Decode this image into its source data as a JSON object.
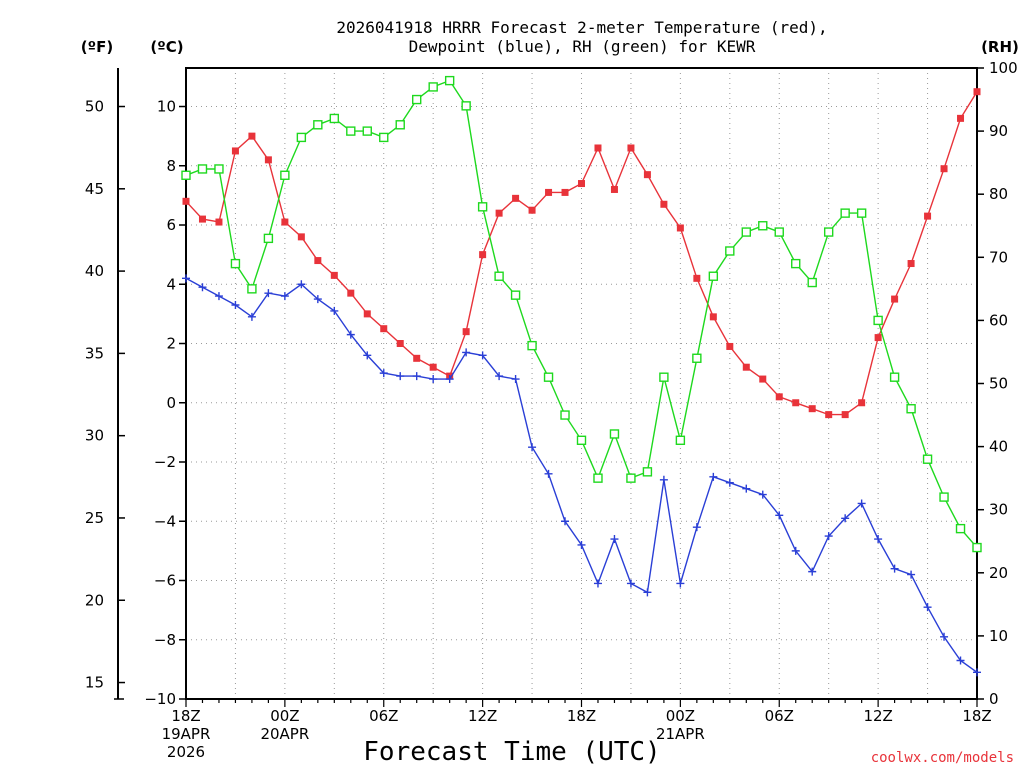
{
  "chart_data": {
    "type": "line",
    "title_line1": "2026041918 HRRR Forecast 2-meter Temperature (red),",
    "title_line2": "Dewpoint (blue), RH (green) for KEWR",
    "xlabel": "Forecast Time (UTC)",
    "credit": "coolwx.com/models",
    "units": {
      "left_outer": "(ºF)",
      "left_inner": "(ºC)",
      "right": "(RH)"
    },
    "yleft_c_range": [
      -10,
      11.3
    ],
    "yright_rh_range": [
      0,
      100
    ],
    "yleft_c_ticks": [
      "−10",
      "−8",
      "−6",
      "−4",
      "−2",
      "0",
      "2",
      "4",
      "6",
      "8",
      "10"
    ],
    "yleft_f_ticks": [
      "15",
      "20",
      "25",
      "30",
      "35",
      "40",
      "45",
      "50"
    ],
    "yright_ticks": [
      "0",
      "10",
      "20",
      "30",
      "40",
      "50",
      "60",
      "70",
      "80",
      "90",
      "100"
    ],
    "x_hour_range": [
      0,
      48
    ],
    "x_ticks": [
      {
        "hour": 0,
        "label": "18Z",
        "sub1": "19APR",
        "sub2": "2026"
      },
      {
        "hour": 6,
        "label": "00Z",
        "sub1": "20APR",
        "sub2": ""
      },
      {
        "hour": 12,
        "label": "06Z",
        "sub1": "",
        "sub2": ""
      },
      {
        "hour": 18,
        "label": "12Z",
        "sub1": "",
        "sub2": ""
      },
      {
        "hour": 24,
        "label": "18Z",
        "sub1": "",
        "sub2": ""
      },
      {
        "hour": 30,
        "label": "00Z",
        "sub1": "21APR",
        "sub2": ""
      },
      {
        "hour": 36,
        "label": "06Z",
        "sub1": "",
        "sub2": ""
      },
      {
        "hour": 42,
        "label": "12Z",
        "sub1": "",
        "sub2": ""
      },
      {
        "hour": 48,
        "label": "18Z",
        "sub1": "",
        "sub2": ""
      }
    ],
    "series": [
      {
        "name": "Temperature",
        "unit": "C",
        "color": "#e8333a",
        "marker": "filled-square",
        "values": [
          6.8,
          6.2,
          6.1,
          8.5,
          9.0,
          8.2,
          6.1,
          5.6,
          4.8,
          4.3,
          3.7,
          3.0,
          2.5,
          2.0,
          1.5,
          1.2,
          0.9,
          2.4,
          5.0,
          6.4,
          6.9,
          6.5,
          7.1,
          7.1,
          7.4,
          8.6,
          7.2,
          8.6,
          7.7,
          6.7,
          5.9,
          4.2,
          2.9,
          1.9,
          1.2,
          0.8,
          0.2,
          0.0,
          -0.2,
          -0.4,
          -0.4,
          0.0,
          2.2,
          3.5,
          4.7,
          6.3,
          7.9,
          9.6,
          10.5
        ]
      },
      {
        "name": "Dewpoint",
        "unit": "C",
        "color": "#2a3fd6",
        "marker": "plus",
        "values": [
          4.2,
          3.9,
          3.6,
          3.3,
          2.9,
          3.7,
          3.6,
          4.0,
          3.5,
          3.1,
          2.3,
          1.6,
          1.0,
          0.9,
          0.9,
          0.8,
          0.8,
          1.7,
          1.6,
          0.9,
          0.8,
          -1.5,
          -2.4,
          -4.0,
          -4.8,
          -6.1,
          -4.6,
          -6.1,
          -6.4,
          -2.6,
          -6.1,
          -4.2,
          -2.5,
          -2.7,
          -2.9,
          -3.1,
          -3.8,
          -5.0,
          -5.7,
          -4.5,
          -3.9,
          -3.4,
          -4.6,
          -5.6,
          -5.8,
          -6.9,
          -7.9,
          -8.7,
          -9.1
        ]
      },
      {
        "name": "Relative Humidity",
        "unit": "%",
        "color": "#1ed91e",
        "marker": "open-square",
        "values": [
          83,
          84,
          84,
          69,
          65,
          73,
          83,
          89,
          91,
          92,
          90,
          90,
          89,
          91,
          95,
          97,
          98,
          94,
          78,
          67,
          64,
          56,
          51,
          45,
          41,
          35,
          42,
          35,
          36,
          51,
          41,
          54,
          67,
          71,
          74,
          75,
          74,
          69,
          66,
          74,
          77,
          77,
          60,
          51,
          46,
          38,
          32,
          27,
          24
        ]
      }
    ]
  }
}
